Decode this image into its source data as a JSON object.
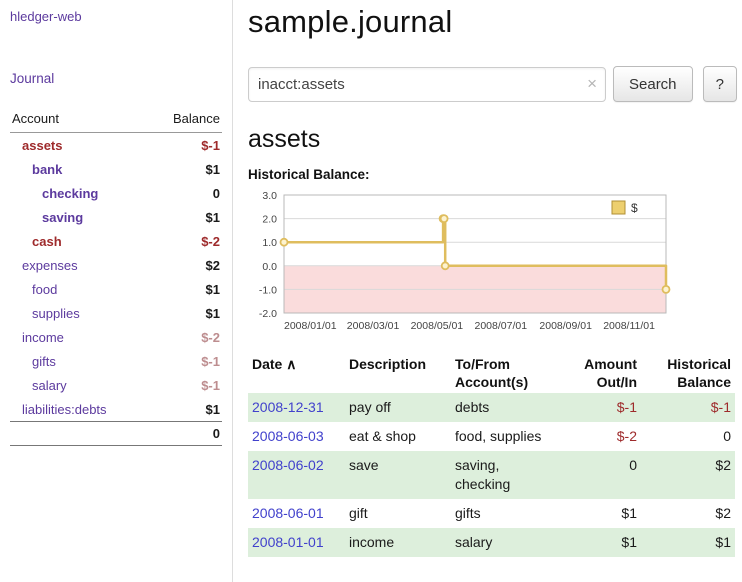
{
  "colors": {
    "link_purple": "#5c3a9e",
    "date_link": "#4141cc",
    "negative_strong": "#9e2a2b",
    "negative_soft": "#bd8d8f",
    "row_shade_green": "#ddefdc"
  },
  "sidebar": {
    "app_title": "hledger-web",
    "journal_link": "Journal",
    "table": {
      "account_header": "Account",
      "balance_header": "Balance",
      "rows": [
        {
          "name": "assets",
          "indent": 0,
          "bold": true,
          "name_negative": true,
          "balance": "$-1",
          "balance_style": "neg-strong"
        },
        {
          "name": "bank",
          "indent": 1,
          "bold": true,
          "name_negative": false,
          "balance": "$1",
          "balance_style": ""
        },
        {
          "name": "checking",
          "indent": 2,
          "bold": true,
          "name_negative": false,
          "balance": "0",
          "balance_style": ""
        },
        {
          "name": "saving",
          "indent": 2,
          "bold": true,
          "name_negative": false,
          "balance": "$1",
          "balance_style": ""
        },
        {
          "name": "cash",
          "indent": 1,
          "bold": true,
          "name_negative": true,
          "balance": "$-2",
          "balance_style": "neg-strong"
        },
        {
          "name": "expenses",
          "indent": 0,
          "bold": false,
          "name_negative": false,
          "balance": "$2",
          "balance_style": ""
        },
        {
          "name": "food",
          "indent": 1,
          "bold": false,
          "name_negative": false,
          "balance": "$1",
          "balance_style": ""
        },
        {
          "name": "supplies",
          "indent": 1,
          "bold": false,
          "name_negative": false,
          "balance": "$1",
          "balance_style": ""
        },
        {
          "name": "income",
          "indent": 0,
          "bold": false,
          "name_negative": false,
          "balance": "$-2",
          "balance_style": "neg-soft"
        },
        {
          "name": "gifts",
          "indent": 1,
          "bold": false,
          "name_negative": false,
          "balance": "$-1",
          "balance_style": "neg-soft"
        },
        {
          "name": "salary",
          "indent": 1,
          "bold": false,
          "name_negative": false,
          "balance": "$-1",
          "balance_style": "neg-soft"
        },
        {
          "name": "liabilities:debts",
          "indent": 0,
          "bold": false,
          "name_negative": false,
          "balance": "$1",
          "balance_style": ""
        }
      ],
      "total": "0"
    }
  },
  "main": {
    "title": "sample.journal",
    "search": {
      "value": "inacct:assets",
      "clear_icon": "×",
      "button_label": "Search",
      "help_label": "?"
    },
    "account_heading": "assets",
    "chart_label": "Historical Balance:"
  },
  "chart_data": {
    "type": "line",
    "step": true,
    "title": "Historical Balance",
    "x_range": [
      "2008-01-01",
      "2008-12-31"
    ],
    "ylim": [
      -2,
      3
    ],
    "yticks": [
      "3.0",
      "2.0",
      "1.0",
      "0.0",
      "-1.0",
      "-2.0"
    ],
    "xticks": [
      "2008/01/01",
      "2008/03/01",
      "2008/05/01",
      "2008/07/01",
      "2008/09/01",
      "2008/11/01"
    ],
    "legend": {
      "label": "$",
      "position": "top-right"
    },
    "series": [
      {
        "name": "$",
        "points": [
          {
            "date": "2008-01-01",
            "value": 1
          },
          {
            "date": "2008-06-01",
            "value": 2
          },
          {
            "date": "2008-06-02",
            "value": 2
          },
          {
            "date": "2008-06-03",
            "value": 0
          },
          {
            "date": "2008-12-31",
            "value": -1
          }
        ]
      }
    ],
    "colors": {
      "line": "#dfbd5e",
      "marker_fill": "#fdf3d0",
      "negative_region": "#fadcdc",
      "legend_swatch": "#edcf6f",
      "grid": "#d9d9d9"
    }
  },
  "transactions": {
    "headers": {
      "date": "Date",
      "sort_indicator": "∧",
      "description": "Description",
      "account": "To/From Account(s)",
      "amount": "Amount Out/In",
      "balance": "Historical Balance"
    },
    "rows": [
      {
        "date": "2008-12-31",
        "description": "pay off",
        "accounts": "debts",
        "amount": "$-1",
        "amount_negative": true,
        "balance": "$-1",
        "balance_negative": true,
        "shaded": true
      },
      {
        "date": "2008-06-03",
        "description": "eat & shop",
        "accounts": "food, supplies",
        "amount": "$-2",
        "amount_negative": true,
        "balance": "0",
        "balance_negative": false,
        "shaded": false
      },
      {
        "date": "2008-06-02",
        "description": "save",
        "accounts": "saving, checking",
        "amount": "0",
        "amount_negative": false,
        "balance": "$2",
        "balance_negative": false,
        "shaded": true
      },
      {
        "date": "2008-06-01",
        "description": "gift",
        "accounts": "gifts",
        "amount": "$1",
        "amount_negative": false,
        "balance": "$2",
        "balance_negative": false,
        "shaded": false
      },
      {
        "date": "2008-01-01",
        "description": "income",
        "accounts": "salary",
        "amount": "$1",
        "amount_negative": false,
        "balance": "$1",
        "balance_negative": false,
        "shaded": true
      }
    ]
  }
}
